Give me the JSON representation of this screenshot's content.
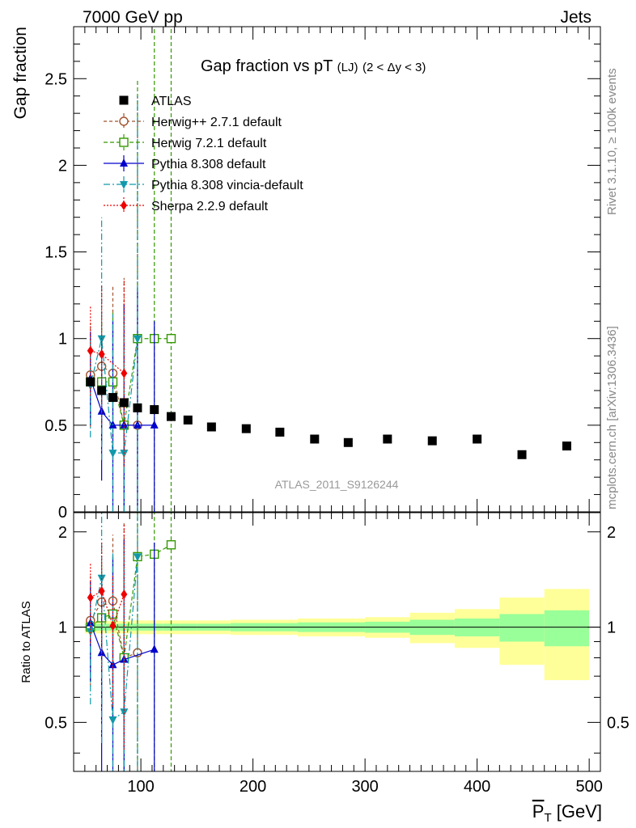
{
  "header": {
    "left": "7000 GeV pp",
    "right": "Jets",
    "side_top": "Rivet 3.1.10, ≥ 100k events",
    "side_bottom": "mcplots.cern.ch [arXiv:1306.3436]",
    "analysis_id": "ATLAS_2011_S9126244"
  },
  "colors": {
    "atlas": "#000000",
    "herwigpp": "#a0522d",
    "herwig7": "#339900",
    "pythia": "#0000cc",
    "vincia": "#1199aa",
    "sherpa": "#ee0000",
    "band_outer": "#ffff99",
    "band_inner": "#99ff99"
  },
  "chart_data": [
    {
      "type": "scatter",
      "panel": "main",
      "title": "Gap fraction vs pT",
      "title_sub": "(LJ)",
      "title_range": "(2 < Δy < 3)",
      "ylabel": "Gap fraction",
      "xlim": [
        40,
        510
      ],
      "ylim": [
        0,
        2.8
      ],
      "y_ticks": [
        0,
        0.5,
        1,
        1.5,
        2,
        2.5
      ],
      "y_tick_labels": [
        "0",
        "0.5",
        "1",
        "1.5",
        "2",
        "2.5"
      ],
      "legend_position": "top-left",
      "series": [
        {
          "key": "atlas",
          "name": "ATLAS",
          "marker": "square-filled",
          "x": [
            55,
            65,
            75,
            85,
            97,
            112,
            127,
            142,
            163,
            194,
            224,
            255,
            285,
            320,
            360,
            400,
            440,
            480
          ],
          "y": [
            0.75,
            0.7,
            0.66,
            0.63,
            0.6,
            0.59,
            0.55,
            0.53,
            0.49,
            0.48,
            0.46,
            0.42,
            0.4,
            0.42,
            0.41,
            0.42,
            0.33,
            0.38
          ]
        },
        {
          "key": "herwigpp",
          "name": "Herwig++ 2.7.1 default",
          "marker": "circle-open",
          "dash": "4,3",
          "x": [
            55,
            65,
            75,
            85,
            97
          ],
          "y": [
            0.79,
            0.84,
            0.8,
            0.5,
            0.5
          ],
          "err": [
            0.3,
            0.45,
            0.5,
            0.85,
            1.9
          ]
        },
        {
          "key": "herwig7",
          "name": "Herwig 7.2.1 default",
          "marker": "square-open",
          "dash": "5,3",
          "x": [
            55,
            65,
            75,
            85,
            97,
            112,
            127
          ],
          "y": [
            0.75,
            0.75,
            0.75,
            0.5,
            1.0,
            1.0,
            1.0
          ],
          "err": [
            0.25,
            0.35,
            0.4,
            0.7,
            1.5,
            1.8,
            1.9
          ]
        },
        {
          "key": "pythia",
          "name": "Pythia 8.308 default",
          "marker": "triangle-up",
          "dash": "",
          "x": [
            55,
            65,
            75,
            85,
            97,
            112
          ],
          "y": [
            0.77,
            0.58,
            0.5,
            0.5,
            0.5,
            0.5
          ],
          "err": [
            0.27,
            0.4,
            0.6,
            0.7,
            0.8,
            0.6
          ]
        },
        {
          "key": "vincia",
          "name": "Pythia 8.308 vincia-default",
          "marker": "triangle-down",
          "dash": "8,3,2,3",
          "x": [
            55,
            65,
            75,
            85,
            97
          ],
          "y": [
            0.73,
            1.0,
            0.34,
            0.34,
            1.0
          ],
          "err": [
            0.3,
            0.7,
            0.8,
            0.8,
            1.4
          ]
        },
        {
          "key": "sherpa",
          "name": "Sherpa 2.2.9 default",
          "marker": "diamond",
          "dash": "2,2",
          "x": [
            55,
            65,
            85
          ],
          "y": [
            0.93,
            0.91,
            0.8
          ],
          "err": [
            0.26,
            0.4,
            0.54
          ]
        }
      ]
    },
    {
      "type": "scatter",
      "panel": "ratio",
      "ylabel": "Ratio to ATLAS",
      "xlabel_main": "P",
      "xlabel_sub": "T",
      "xlabel_unit": "[GeV]",
      "xlim": [
        40,
        510
      ],
      "ylim": [
        0.35,
        2.3
      ],
      "x_ticks": [
        100,
        200,
        300,
        400,
        500
      ],
      "x_tick_labels": [
        "100",
        "200",
        "300",
        "400",
        "500"
      ],
      "y_ticks": [
        0.5,
        1,
        2
      ],
      "y_tick_labels": [
        "0.5",
        "1",
        "2"
      ],
      "bands": [
        {
          "x0": 50,
          "x1": 60,
          "inner": [
            0.975,
            1.025
          ],
          "outer": [
            0.955,
            1.045
          ]
        },
        {
          "x0": 60,
          "x1": 70,
          "inner": [
            0.975,
            1.025
          ],
          "outer": [
            0.955,
            1.045
          ]
        },
        {
          "x0": 70,
          "x1": 80,
          "inner": [
            0.975,
            1.025
          ],
          "outer": [
            0.955,
            1.045
          ]
        },
        {
          "x0": 80,
          "x1": 90,
          "inner": [
            0.975,
            1.025
          ],
          "outer": [
            0.955,
            1.045
          ]
        },
        {
          "x0": 90,
          "x1": 105,
          "inner": [
            0.975,
            1.025
          ],
          "outer": [
            0.95,
            1.05
          ]
        },
        {
          "x0": 105,
          "x1": 120,
          "inner": [
            0.975,
            1.025
          ],
          "outer": [
            0.95,
            1.05
          ]
        },
        {
          "x0": 120,
          "x1": 135,
          "inner": [
            0.975,
            1.025
          ],
          "outer": [
            0.95,
            1.05
          ]
        },
        {
          "x0": 135,
          "x1": 150,
          "inner": [
            0.975,
            1.025
          ],
          "outer": [
            0.95,
            1.05
          ]
        },
        {
          "x0": 150,
          "x1": 180,
          "inner": [
            0.975,
            1.025
          ],
          "outer": [
            0.95,
            1.05
          ]
        },
        {
          "x0": 180,
          "x1": 210,
          "inner": [
            0.97,
            1.03
          ],
          "outer": [
            0.945,
            1.055
          ]
        },
        {
          "x0": 210,
          "x1": 240,
          "inner": [
            0.97,
            1.03
          ],
          "outer": [
            0.945,
            1.055
          ]
        },
        {
          "x0": 240,
          "x1": 270,
          "inner": [
            0.965,
            1.035
          ],
          "outer": [
            0.935,
            1.065
          ]
        },
        {
          "x0": 270,
          "x1": 300,
          "inner": [
            0.965,
            1.035
          ],
          "outer": [
            0.935,
            1.065
          ]
        },
        {
          "x0": 300,
          "x1": 340,
          "inner": [
            0.96,
            1.04
          ],
          "outer": [
            0.925,
            1.075
          ]
        },
        {
          "x0": 340,
          "x1": 380,
          "inner": [
            0.945,
            1.055
          ],
          "outer": [
            0.89,
            1.11
          ]
        },
        {
          "x0": 380,
          "x1": 420,
          "inner": [
            0.935,
            1.065
          ],
          "outer": [
            0.86,
            1.14
          ]
        },
        {
          "x0": 420,
          "x1": 460,
          "inner": [
            0.9,
            1.1
          ],
          "outer": [
            0.76,
            1.24
          ]
        },
        {
          "x0": 460,
          "x1": 500,
          "inner": [
            0.87,
            1.13
          ],
          "outer": [
            0.68,
            1.32
          ]
        }
      ],
      "series": [
        {
          "key": "herwigpp",
          "name": "Herwig++ 2.7.1 default",
          "marker": "circle-open",
          "dash": "4,3",
          "x": [
            55,
            65,
            75,
            85,
            97
          ],
          "y": [
            1.05,
            1.2,
            1.21,
            0.8,
            0.83
          ],
          "err": [
            0.4,
            0.64,
            0.75,
            1.35,
            3.2
          ]
        },
        {
          "key": "herwig7",
          "name": "Herwig 7.2.1 default",
          "marker": "square-open",
          "dash": "5,3",
          "x": [
            55,
            65,
            75,
            85,
            97,
            112,
            127
          ],
          "y": [
            1.0,
            1.07,
            1.1,
            0.8,
            1.67,
            1.7,
            1.82
          ],
          "err": [
            0.33,
            0.5,
            0.6,
            1.1,
            2.5,
            3.0,
            3.4
          ]
        },
        {
          "key": "pythia",
          "name": "Pythia 8.308 default",
          "marker": "triangle-up",
          "dash": "",
          "x": [
            55,
            65,
            75,
            85,
            112
          ],
          "y": [
            1.03,
            0.83,
            0.76,
            0.79,
            0.85
          ],
          "err": [
            0.36,
            0.57,
            0.9,
            1.1,
            1.0
          ]
        },
        {
          "key": "vincia",
          "name": "Pythia 8.308 vincia-default",
          "marker": "triangle-down",
          "dash": "8,3,2,3",
          "x": [
            55,
            65,
            75,
            85,
            97
          ],
          "y": [
            0.97,
            1.43,
            0.51,
            0.54,
            1.67
          ],
          "err": [
            0.4,
            1.0,
            1.2,
            1.27,
            2.3
          ]
        },
        {
          "key": "sherpa",
          "name": "Sherpa 2.2.9 default",
          "marker": "diamond",
          "dash": "2,2",
          "x": [
            55,
            65,
            75,
            85
          ],
          "y": [
            1.24,
            1.3,
            1.01,
            1.27
          ],
          "err": [
            0.35,
            0.57,
            0.45,
            0.86
          ]
        }
      ]
    }
  ]
}
